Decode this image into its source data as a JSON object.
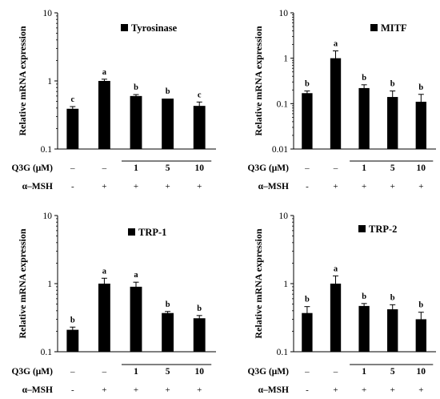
{
  "treatments": {
    "q3g_label": "Q3G (μM)",
    "q3g_values": [
      "–",
      "–",
      "1",
      "5",
      "10"
    ],
    "msh_label": "α–MSH",
    "msh_values": [
      "-",
      "+",
      "+",
      "+",
      "+"
    ]
  },
  "chart_data": [
    {
      "type": "bar",
      "legend": "Tyrosinase",
      "ylabel": "Relative mRNA expression",
      "yscale": "log",
      "ylim": [
        0.1,
        10
      ],
      "yticks": [
        "0.1",
        "1",
        "10"
      ],
      "values": [
        0.39,
        1.0,
        0.6,
        0.55,
        0.43
      ],
      "errors": [
        0.03,
        0.06,
        0.03,
        0.0,
        0.06
      ],
      "letters": [
        "c",
        "a",
        "b",
        "b",
        "c"
      ]
    },
    {
      "type": "bar",
      "legend": "MITF",
      "ylabel": "Relative mRNA expression",
      "yscale": "log",
      "ylim": [
        0.01,
        10
      ],
      "yticks": [
        "0.01",
        "0.1",
        "1",
        "10"
      ],
      "values": [
        0.17,
        1.0,
        0.22,
        0.14,
        0.11
      ],
      "errors": [
        0.02,
        0.45,
        0.04,
        0.05,
        0.05
      ],
      "letters": [
        "b",
        "a",
        "b",
        "b",
        "b"
      ]
    },
    {
      "type": "bar",
      "legend": "TRP-1",
      "ylabel": "Relative mRNA expression",
      "yscale": "log",
      "ylim": [
        0.1,
        10
      ],
      "yticks": [
        "0.1",
        "1",
        "10"
      ],
      "values": [
        0.21,
        1.0,
        0.9,
        0.37,
        0.31
      ],
      "errors": [
        0.02,
        0.2,
        0.15,
        0.02,
        0.03
      ],
      "letters": [
        "b",
        "a",
        "a",
        "b",
        "b"
      ]
    },
    {
      "type": "bar",
      "legend": "TRP-2",
      "ylabel": "Relative mRNA expression",
      "yscale": "log",
      "ylim": [
        0.1,
        10
      ],
      "yticks": [
        "0.1",
        "1",
        "10"
      ],
      "values": [
        0.37,
        1.0,
        0.47,
        0.42,
        0.3
      ],
      "errors": [
        0.09,
        0.3,
        0.04,
        0.07,
        0.08
      ],
      "letters": [
        "b",
        "a",
        "b",
        "b",
        "b"
      ]
    }
  ]
}
